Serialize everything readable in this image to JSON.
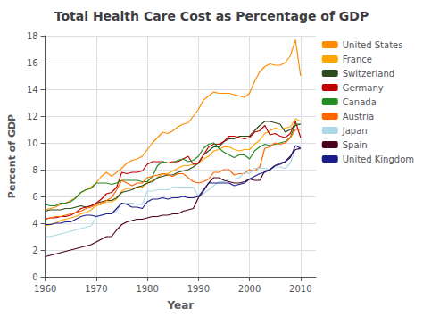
{
  "chart_data": {
    "type": "line",
    "title": "Total Health Care Cost as Percentage of GDP",
    "xlabel": "Year",
    "ylabel": "Percent of GDP",
    "x": [
      1960,
      1961,
      1962,
      1963,
      1964,
      1965,
      1966,
      1967,
      1968,
      1969,
      1970,
      1971,
      1972,
      1973,
      1974,
      1975,
      1976,
      1977,
      1978,
      1979,
      1980,
      1981,
      1982,
      1983,
      1984,
      1985,
      1986,
      1987,
      1988,
      1989,
      1990,
      1991,
      1992,
      1993,
      1994,
      1995,
      1996,
      1997,
      1998,
      1999,
      2000,
      2001,
      2002,
      2003,
      2004,
      2005,
      2006,
      2007,
      2008,
      2009,
      2010
    ],
    "series": [
      {
        "name": "United States",
        "color": "#FF8C00",
        "values": [
          5.0,
          5.1,
          5.2,
          5.4,
          5.5,
          5.7,
          5.9,
          6.3,
          6.5,
          6.7,
          7.0,
          7.5,
          7.8,
          7.5,
          7.8,
          8.1,
          8.5,
          8.7,
          8.8,
          9.0,
          9.5,
          10.0,
          10.4,
          10.8,
          10.7,
          10.9,
          11.2,
          11.4,
          11.5,
          12.0,
          12.5,
          13.2,
          13.5,
          13.8,
          13.7,
          13.7,
          13.7,
          13.6,
          13.5,
          13.4,
          13.7,
          14.6,
          15.3,
          15.7,
          15.9,
          15.8,
          15.8,
          16.0,
          16.5,
          17.7,
          15.0
        ]
      },
      {
        "name": "France",
        "color": "#FFA500",
        "values": [
          3.8,
          3.9,
          4.0,
          4.2,
          4.3,
          4.4,
          4.5,
          4.7,
          4.8,
          5.0,
          5.3,
          5.4,
          5.6,
          5.6,
          5.8,
          6.4,
          6.6,
          6.6,
          6.7,
          6.7,
          7.0,
          7.2,
          7.4,
          7.7,
          7.7,
          7.9,
          8.1,
          8.3,
          8.3,
          8.4,
          8.5,
          8.8,
          9.0,
          9.4,
          9.5,
          9.7,
          9.7,
          9.5,
          9.4,
          9.5,
          9.5,
          9.9,
          10.2,
          10.7,
          10.9,
          11.1,
          11.0,
          11.1,
          11.2,
          11.8,
          11.6
        ]
      },
      {
        "name": "Switzerland",
        "color": "#2E4A1E",
        "values": [
          4.9,
          5.0,
          5.0,
          5.0,
          5.1,
          5.1,
          5.2,
          5.3,
          5.2,
          5.3,
          5.5,
          5.6,
          5.7,
          5.7,
          5.9,
          6.3,
          6.4,
          6.5,
          6.7,
          6.8,
          7.0,
          7.1,
          7.4,
          7.5,
          7.6,
          7.6,
          7.8,
          7.9,
          8.0,
          8.2,
          8.5,
          9.1,
          9.4,
          9.7,
          9.7,
          10.1,
          10.3,
          10.3,
          10.5,
          10.5,
          10.5,
          10.9,
          11.3,
          11.6,
          11.6,
          11.5,
          11.4,
          10.8,
          11.0,
          11.3,
          11.4
        ]
      },
      {
        "name": "Germany",
        "color": "#C00000",
        "values": [
          4.3,
          4.4,
          4.4,
          4.5,
          4.5,
          4.6,
          4.8,
          5.1,
          5.2,
          5.3,
          5.5,
          5.8,
          6.2,
          6.3,
          6.7,
          7.8,
          7.7,
          7.8,
          7.8,
          7.9,
          8.4,
          8.6,
          8.6,
          8.6,
          8.5,
          8.6,
          8.6,
          8.8,
          9.0,
          8.4,
          8.5,
          9.1,
          9.7,
          9.9,
          9.9,
          10.1,
          10.5,
          10.5,
          10.4,
          10.3,
          10.4,
          10.8,
          10.9,
          11.3,
          10.6,
          10.7,
          10.5,
          10.4,
          10.7,
          11.6,
          10.4
        ]
      },
      {
        "name": "Canada",
        "color": "#228B22",
        "values": [
          5.4,
          5.3,
          5.3,
          5.5,
          5.5,
          5.6,
          5.9,
          6.3,
          6.5,
          6.6,
          7.0,
          7.0,
          7.0,
          6.9,
          7.0,
          7.2,
          7.2,
          7.2,
          7.2,
          7.1,
          7.1,
          7.5,
          8.3,
          8.6,
          8.5,
          8.5,
          8.7,
          8.8,
          8.6,
          8.7,
          9.0,
          9.6,
          9.9,
          10.0,
          9.6,
          9.3,
          9.1,
          8.9,
          9.1,
          9.1,
          8.8,
          9.4,
          9.7,
          9.9,
          9.8,
          9.9,
          10.0,
          10.1,
          10.4,
          11.4,
          11.4
        ]
      },
      {
        "name": "Austria",
        "color": "#FF6600",
        "values": [
          4.3,
          4.4,
          4.5,
          4.5,
          4.6,
          4.7,
          4.8,
          4.9,
          5.1,
          5.2,
          5.4,
          5.5,
          5.7,
          5.9,
          6.5,
          7.2,
          7.0,
          6.8,
          7.0,
          7.0,
          7.4,
          7.5,
          7.6,
          7.7,
          7.6,
          7.5,
          7.7,
          7.7,
          7.4,
          7.1,
          7.0,
          7.1,
          7.3,
          7.8,
          7.8,
          8.0,
          8.0,
          7.6,
          7.7,
          7.7,
          8.0,
          7.9,
          8.2,
          9.6,
          9.7,
          10.0,
          9.9,
          10.0,
          10.4,
          11.0,
          11.0
        ]
      },
      {
        "name": "Japan",
        "color": "#ADD8E6",
        "values": [
          3.0,
          3.0,
          3.1,
          3.2,
          3.3,
          3.4,
          3.5,
          3.6,
          3.7,
          3.8,
          4.5,
          4.6,
          4.7,
          4.7,
          4.9,
          5.5,
          5.5,
          5.5,
          5.4,
          5.4,
          6.4,
          6.4,
          6.5,
          6.5,
          6.5,
          6.7,
          6.7,
          6.7,
          6.7,
          6.7,
          6.0,
          6.2,
          6.5,
          6.8,
          7.1,
          7.1,
          7.3,
          7.3,
          7.4,
          7.8,
          7.7,
          8.1,
          8.1,
          8.1,
          8.0,
          8.2,
          8.2,
          8.1,
          8.5,
          9.5,
          9.5
        ]
      },
      {
        "name": "Spain",
        "color": "#4B0020",
        "values": [
          1.5,
          1.6,
          1.7,
          1.8,
          1.9,
          2.0,
          2.1,
          2.2,
          2.3,
          2.4,
          2.6,
          2.8,
          3.0,
          3.0,
          3.5,
          3.9,
          4.1,
          4.2,
          4.3,
          4.3,
          4.4,
          4.5,
          4.5,
          4.6,
          4.6,
          4.7,
          4.7,
          4.9,
          5.0,
          5.1,
          5.9,
          6.4,
          7.0,
          7.4,
          7.4,
          7.2,
          7.1,
          7.0,
          7.0,
          7.1,
          7.3,
          7.2,
          7.2,
          7.9,
          8.0,
          8.3,
          8.4,
          8.6,
          9.0,
          9.5,
          9.6
        ]
      },
      {
        "name": "United Kingdom",
        "color": "#1C1C8A",
        "values": [
          3.9,
          3.9,
          4.0,
          4.0,
          4.1,
          4.1,
          4.3,
          4.5,
          4.6,
          4.6,
          4.5,
          4.6,
          4.7,
          4.7,
          5.1,
          5.5,
          5.4,
          5.2,
          5.2,
          5.1,
          5.6,
          5.8,
          5.8,
          5.9,
          5.8,
          5.9,
          5.9,
          6.0,
          5.9,
          5.9,
          6.0,
          6.5,
          7.0,
          7.0,
          7.0,
          7.0,
          7.0,
          6.8,
          6.9,
          7.0,
          7.3,
          7.5,
          7.7,
          7.8,
          8.0,
          8.3,
          8.5,
          8.6,
          8.9,
          9.8,
          9.6
        ]
      }
    ],
    "xlim": [
      1960,
      2013
    ],
    "ylim": [
      0,
      18
    ],
    "xticks": [
      1960,
      1970,
      1980,
      1990,
      2000,
      2010
    ],
    "yticks": [
      0,
      2,
      4,
      6,
      8,
      10,
      12,
      14,
      16,
      18
    ],
    "grid": true,
    "legend": "right"
  }
}
